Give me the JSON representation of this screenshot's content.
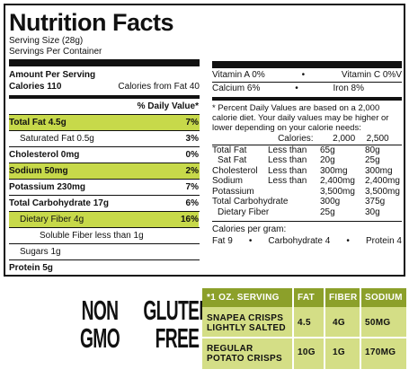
{
  "label": {
    "title": "Nutrition Facts",
    "serving_size": "Serving Size (28g)",
    "servings_per_container": "Servings Per Container",
    "amount_per_serving": "Amount Per Serving",
    "calories": "Calories 110",
    "calories_from_fat": "Calories from Fat 40",
    "daily_value_header": "% Daily Value*",
    "rows": [
      {
        "name": "Total Fat 4.5g",
        "dv": "7%"
      },
      {
        "name": "Saturated Fat 0.5g",
        "dv": "3%"
      },
      {
        "name": "Cholesterol 0mg",
        "dv": "0%"
      },
      {
        "name": "Sodium 50mg",
        "dv": "2%"
      },
      {
        "name": "Potassium 230mg",
        "dv": "7%"
      },
      {
        "name": "Total Carbohydrate 17g",
        "dv": "6%"
      },
      {
        "name": "Dietary Fiber 4g",
        "dv": "16%"
      },
      {
        "name": "Soluble Fiber less than 1g",
        "dv": ""
      },
      {
        "name": "Sugars 1g",
        "dv": ""
      },
      {
        "name": "Protein 5g",
        "dv": ""
      }
    ],
    "vitamins": [
      {
        "left": "Vitamin A 0%",
        "right": "Vitamin C 0%V"
      },
      {
        "left": "Calcium 6%",
        "right": "Iron 8%"
      }
    ],
    "footnote": "* Percent Daily Values are based on a 2,000 calorie diet. Your daily values may be higher or lower depending on your calorie needs:",
    "dv_table": {
      "header": [
        "",
        "Calories:",
        "2,000",
        "2,500"
      ],
      "rows": [
        [
          "Total Fat",
          "Less than",
          "65g",
          "80g"
        ],
        [
          "Sat Fat",
          "Less than",
          "20g",
          "25g"
        ],
        [
          "Cholesterol",
          "Less than",
          "300mg",
          "300mg"
        ],
        [
          "Sodium",
          "Less than",
          "2,400mg",
          "2,400mg"
        ],
        [
          "Potassium",
          "",
          "3,500mg",
          "3,500mg"
        ],
        [
          "Total Carbohydrate",
          "",
          "300g",
          "375g"
        ],
        [
          "Dietary Fiber",
          "",
          "25g",
          "30g"
        ]
      ]
    },
    "calories_per_gram": "Calories per gram:",
    "cpg": [
      "Fat 9",
      "Carbohydrate 4",
      "Protein 4"
    ]
  },
  "badges": {
    "non_gmo": [
      "NON",
      "GMO"
    ],
    "gluten_free": [
      "GLUTEN",
      "FREE"
    ]
  },
  "comparison": {
    "headers": [
      "*1 OZ. SERVING",
      "FAT",
      "FIBER",
      "SODIUM"
    ],
    "rows": [
      {
        "product_line1": "SNAPEA CRISPS",
        "product_line2": "LIGHTLY SALTED",
        "fat": "4.5",
        "fiber": "4G",
        "sodium": "50MG"
      },
      {
        "product_line1": "REGULAR",
        "product_line2": "POTATO CRISPS",
        "fat": "10G",
        "fiber": "1G",
        "sodium": "170MG"
      }
    ]
  },
  "colors": {
    "highlight": "#c7d94a",
    "table_header": "#8ca02a",
    "table_body": "#d4de86"
  }
}
